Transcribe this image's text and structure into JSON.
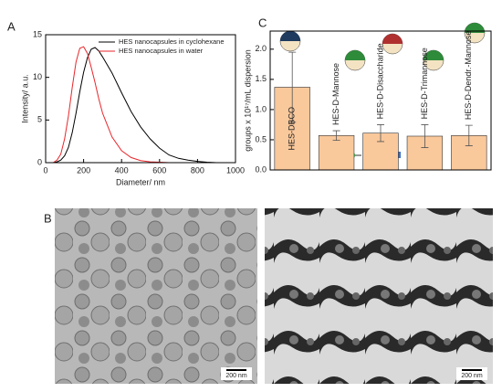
{
  "chart_data": [
    {
      "type": "line",
      "panel_label": "A",
      "xlabel": "Diameter/ nm",
      "ylabel": "Intensity/ a.u.",
      "xlim": [
        0,
        1000
      ],
      "xticks": [
        0,
        200,
        400,
        600,
        800,
        1000
      ],
      "ylim": [
        0,
        15
      ],
      "yticks": [
        0,
        5,
        10,
        15
      ],
      "legend": "upper right",
      "series": [
        {
          "name": "HES nanocapsules in cyclohexane",
          "color": "#000000",
          "x": [
            40,
            60,
            80,
            100,
            120,
            140,
            160,
            180,
            200,
            220,
            240,
            260,
            280,
            300,
            350,
            400,
            450,
            500,
            550,
            600,
            650,
            700,
            750,
            800,
            850,
            900
          ],
          "values": [
            0,
            0.1,
            0.3,
            0.8,
            1.8,
            3.5,
            5.8,
            8.3,
            10.6,
            12.3,
            13.3,
            13.5,
            13.1,
            12.4,
            10.5,
            8.2,
            6.0,
            4.2,
            2.8,
            1.7,
            0.9,
            0.5,
            0.3,
            0.15,
            0.05,
            0
          ]
        },
        {
          "name": "HES nanocapsules in water",
          "color": "#e8262b",
          "x": [
            40,
            60,
            80,
            100,
            120,
            140,
            160,
            180,
            200,
            220,
            240,
            260,
            280,
            300,
            350,
            400,
            450,
            500,
            550,
            600,
            650
          ],
          "values": [
            0,
            0.3,
            1.0,
            2.8,
            5.5,
            8.8,
            11.8,
            13.4,
            13.6,
            12.8,
            11.2,
            9.4,
            7.5,
            5.8,
            3.0,
            1.4,
            0.6,
            0.25,
            0.1,
            0.05,
            0
          ]
        }
      ]
    },
    {
      "type": "bar",
      "panel_label": "C",
      "ylabel": "groups x 10¹⁷/mL dispersion",
      "categories": [
        "HES-DBCO",
        "HES-D-Mannose",
        "HES-D-Disaccharide",
        "HES-D-Trimannose",
        "HES-D-Dendr.-Mannose"
      ],
      "values": [
        1.37,
        0.57,
        0.61,
        0.56,
        0.57
      ],
      "errors": [
        0.58,
        0.08,
        0.14,
        0.19,
        0.17
      ],
      "color": "#f9c89b",
      "ylim": [
        0,
        2.3
      ],
      "yticks": [
        {
          "value": 0,
          "label": "0.0"
        },
        {
          "value": 0.5,
          "label": "0.5"
        },
        {
          "value": 1,
          "label": "1.0"
        },
        {
          "value": 1.5,
          "label": "1.5"
        },
        {
          "value": 2,
          "label": "2.0"
        }
      ]
    }
  ],
  "panel_b": {
    "panel_label": "B",
    "scale_bars": [
      "200 nm",
      "200 nm"
    ]
  }
}
